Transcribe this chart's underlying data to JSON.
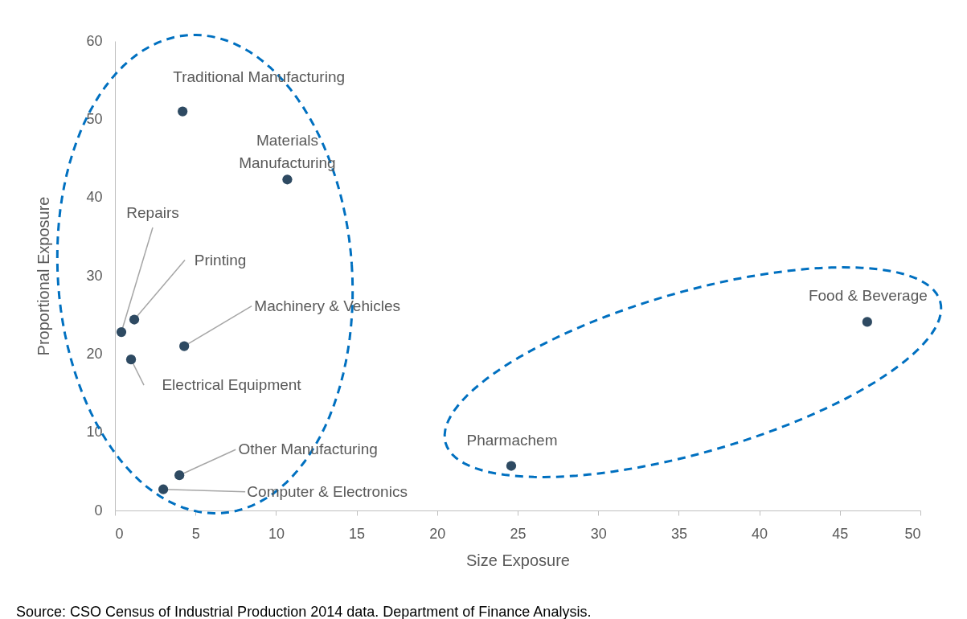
{
  "chart_data": {
    "type": "scatter",
    "xlabel": "Size Exposure",
    "ylabel": "Proportional Exposure",
    "x": [
      4.2,
      10.7,
      0.4,
      1.2,
      4.3,
      1.0,
      4.0,
      3.0,
      24.6,
      46.7
    ],
    "series": [
      {
        "color": "#2e4a62",
        "values": [
          51.0,
          42.3,
          22.8,
          24.4,
          21.0,
          19.3,
          4.5,
          2.7,
          5.7,
          24.1
        ]
      }
    ],
    "xlim": [
      0,
      50
    ],
    "ylim": [
      0,
      60
    ],
    "xticks": [
      0,
      5,
      10,
      15,
      20,
      25,
      30,
      35,
      40,
      45,
      50
    ],
    "yticks": [
      0,
      10,
      20,
      30,
      40,
      50,
      60
    ],
    "grid": false,
    "marker": "circle",
    "annotations": [
      {
        "text": "Traditional Manufacturing",
        "x": 4.2,
        "y": 51.0
      },
      {
        "text": "Materials Manufacturing",
        "x": 10.7,
        "y": 42.3
      },
      {
        "text": "Repairs",
        "x": 0.4,
        "y": 22.8
      },
      {
        "text": "Printing",
        "x": 1.2,
        "y": 24.4
      },
      {
        "text": "Machinery & Vehicles",
        "x": 4.3,
        "y": 21.0
      },
      {
        "text": "Electrical Equipment",
        "x": 1.0,
        "y": 19.3
      },
      {
        "text": "Other Manufacturing",
        "x": 4.0,
        "y": 4.5
      },
      {
        "text": "Computer & Electronics",
        "x": 3.0,
        "y": 2.7
      },
      {
        "text": "Pharmachem",
        "x": 24.6,
        "y": 5.7
      },
      {
        "text": "Food & Beverage",
        "x": 46.7,
        "y": 24.1
      },
      "Source: CSO Census of Industrial Production 2014 data. Department of Finance Analysis."
    ]
  }
}
